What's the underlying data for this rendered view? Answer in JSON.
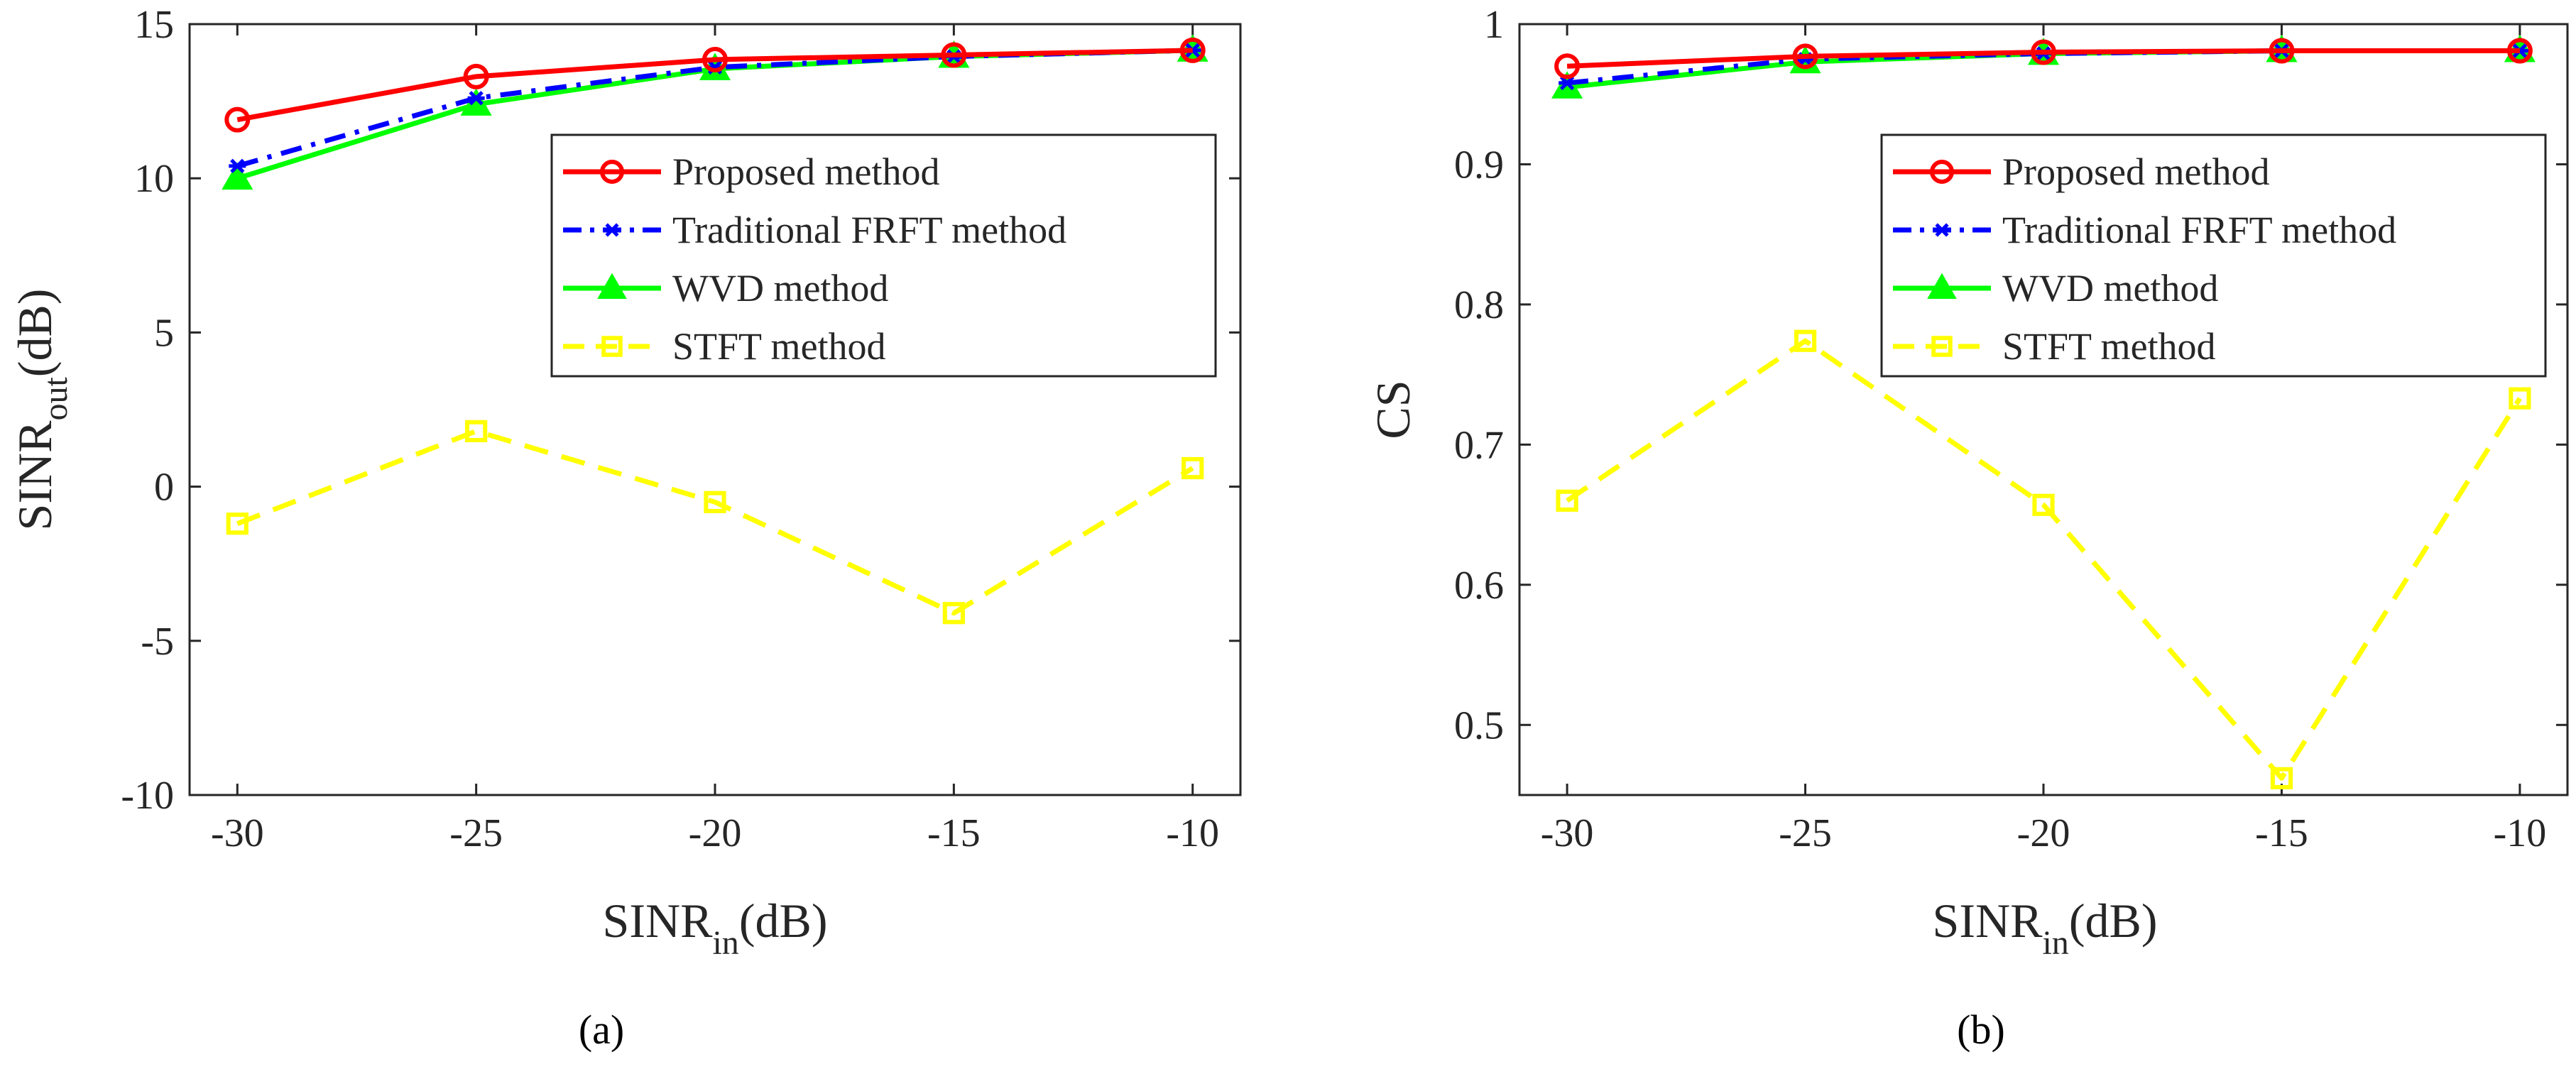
{
  "chart_data": [
    {
      "panel": "a",
      "caption": "(a)",
      "type": "line",
      "x": [
        -30,
        -25,
        -20,
        -15,
        -10
      ],
      "xlim": [
        -31,
        -9
      ],
      "ylim": [
        -10,
        15
      ],
      "xticks": [
        -30,
        -25,
        -20,
        -15,
        -10
      ],
      "yticks": [
        -10,
        -5,
        0,
        5,
        10,
        15
      ],
      "xtick_labels": [
        "-30",
        "-25",
        "-20",
        "-15",
        "-10"
      ],
      "ytick_labels": [
        "-10",
        "-5",
        "0",
        "5",
        "10",
        "15"
      ],
      "xlabel": {
        "main": "SINR",
        "sub": "in",
        "unit": "(dB)"
      },
      "ylabel": {
        "main": "SINR",
        "sub": "out",
        "unit": "(dB)"
      },
      "grid": false,
      "legend_position": "top-right",
      "series": [
        {
          "name": "Proposed method",
          "color": "#ff0000",
          "style": "solid",
          "marker": "circle",
          "values": [
            11.9,
            13.3,
            13.85,
            14.0,
            14.15
          ]
        },
        {
          "name": "Traditional FRFT method",
          "color": "#0000ff",
          "style": "dashdot",
          "marker": "asterisk",
          "values": [
            10.4,
            12.6,
            13.6,
            13.95,
            14.15
          ]
        },
        {
          "name": "WVD method",
          "color": "#00ff00",
          "style": "solid",
          "marker": "triangle",
          "values": [
            10.0,
            12.4,
            13.55,
            13.95,
            14.15
          ]
        },
        {
          "name": "STFT method",
          "color": "#ffff00",
          "style": "dashed",
          "marker": "square",
          "values": [
            -1.2,
            1.8,
            -0.5,
            -4.1,
            0.6
          ]
        }
      ]
    },
    {
      "panel": "b",
      "caption": "(b)",
      "type": "line",
      "x": [
        -30,
        -25,
        -20,
        -15,
        -10
      ],
      "xlim": [
        -31,
        -9
      ],
      "ylim": [
        0.45,
        1.0
      ],
      "xticks": [
        -30,
        -25,
        -20,
        -15,
        -10
      ],
      "yticks": [
        0.5,
        0.6,
        0.7,
        0.8,
        0.9,
        1.0
      ],
      "xtick_labels": [
        "-30",
        "-25",
        "-20",
        "-15",
        "-10"
      ],
      "ytick_labels": [
        "0.5",
        "0.6",
        "0.7",
        "0.8",
        "0.9",
        "1"
      ],
      "xlabel": {
        "main": "SINR",
        "sub": "in",
        "unit": "(dB)"
      },
      "ylabel": {
        "main": "CS",
        "sub": "",
        "unit": ""
      },
      "grid": false,
      "legend_position": "top-right",
      "series": [
        {
          "name": "Proposed method",
          "color": "#ff0000",
          "style": "solid",
          "marker": "circle",
          "values": [
            0.97,
            0.977,
            0.98,
            0.981,
            0.981
          ]
        },
        {
          "name": "Traditional FRFT method",
          "color": "#0000ff",
          "style": "dashdot",
          "marker": "asterisk",
          "values": [
            0.958,
            0.975,
            0.979,
            0.981,
            0.981
          ]
        },
        {
          "name": "WVD method",
          "color": "#00ff00",
          "style": "solid",
          "marker": "triangle",
          "values": [
            0.955,
            0.973,
            0.979,
            0.981,
            0.981
          ]
        },
        {
          "name": "STFT method",
          "color": "#ffff00",
          "style": "dashed",
          "marker": "square",
          "values": [
            0.66,
            0.774,
            0.657,
            0.462,
            0.733
          ]
        }
      ]
    }
  ]
}
